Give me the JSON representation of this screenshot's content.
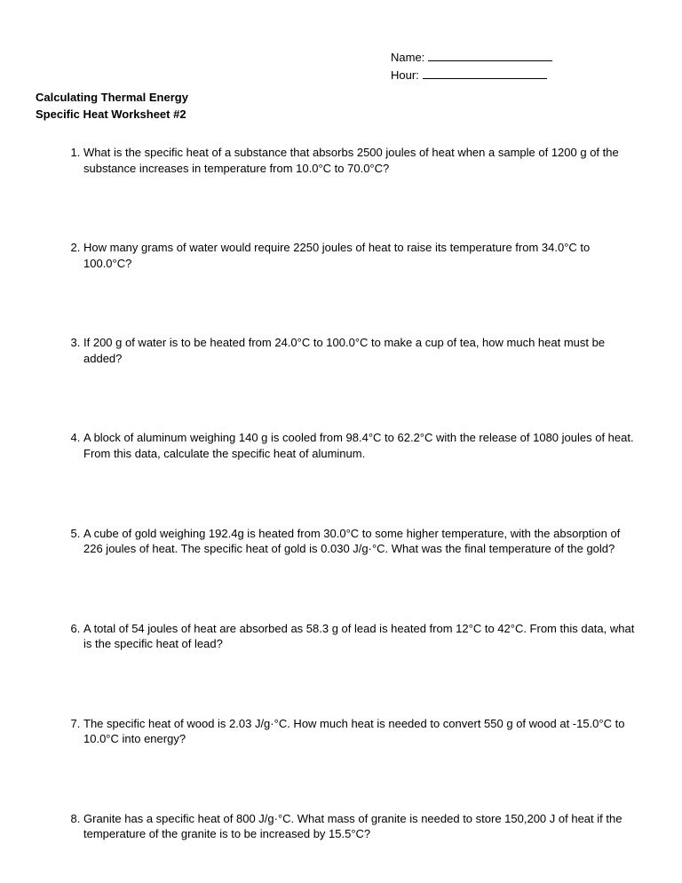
{
  "header": {
    "name_label": "Name:",
    "hour_label": "Hour:"
  },
  "title": {
    "line1": "Calculating Thermal Energy",
    "line2": "Specific Heat Worksheet #2"
  },
  "questions": [
    "What is the specific heat of a substance that absorbs 2500 joules of heat when a sample of 1200 g of the substance increases in temperature from 10.0°C to 70.0°C?",
    "How many grams of water would require 2250 joules of heat to raise its temperature from 34.0°C to 100.0°C?",
    "If 200 g of water is to be heated from 24.0°C to 100.0°C to make a cup of tea, how much heat must be added?",
    "A block of aluminum weighing 140 g is cooled from 98.4°C to 62.2°C with the release of 1080 joules of heat.  From this data, calculate the specific heat of aluminum.",
    "A cube of gold weighing 192.4g is heated from 30.0°C to some higher temperature, with the absorption of 226 joules of heat.  The specific heat of gold is 0.030 J/g·°C.  What was the final temperature of the gold?",
    "A total of 54 joules of heat are absorbed as 58.3 g of lead is heated from 12°C to 42°C.  From this data, what is the specific heat of lead?",
    "The specific heat of wood is 2.03 J/g·°C.  How much heat is needed to convert 550 g of wood at -15.0°C to 10.0°C into energy?",
    "Granite has a specific heat of 800 J/g·°C.  What mass of granite is needed to store 150,200 J of heat if the temperature of the granite is to be increased by 15.5°C?"
  ]
}
